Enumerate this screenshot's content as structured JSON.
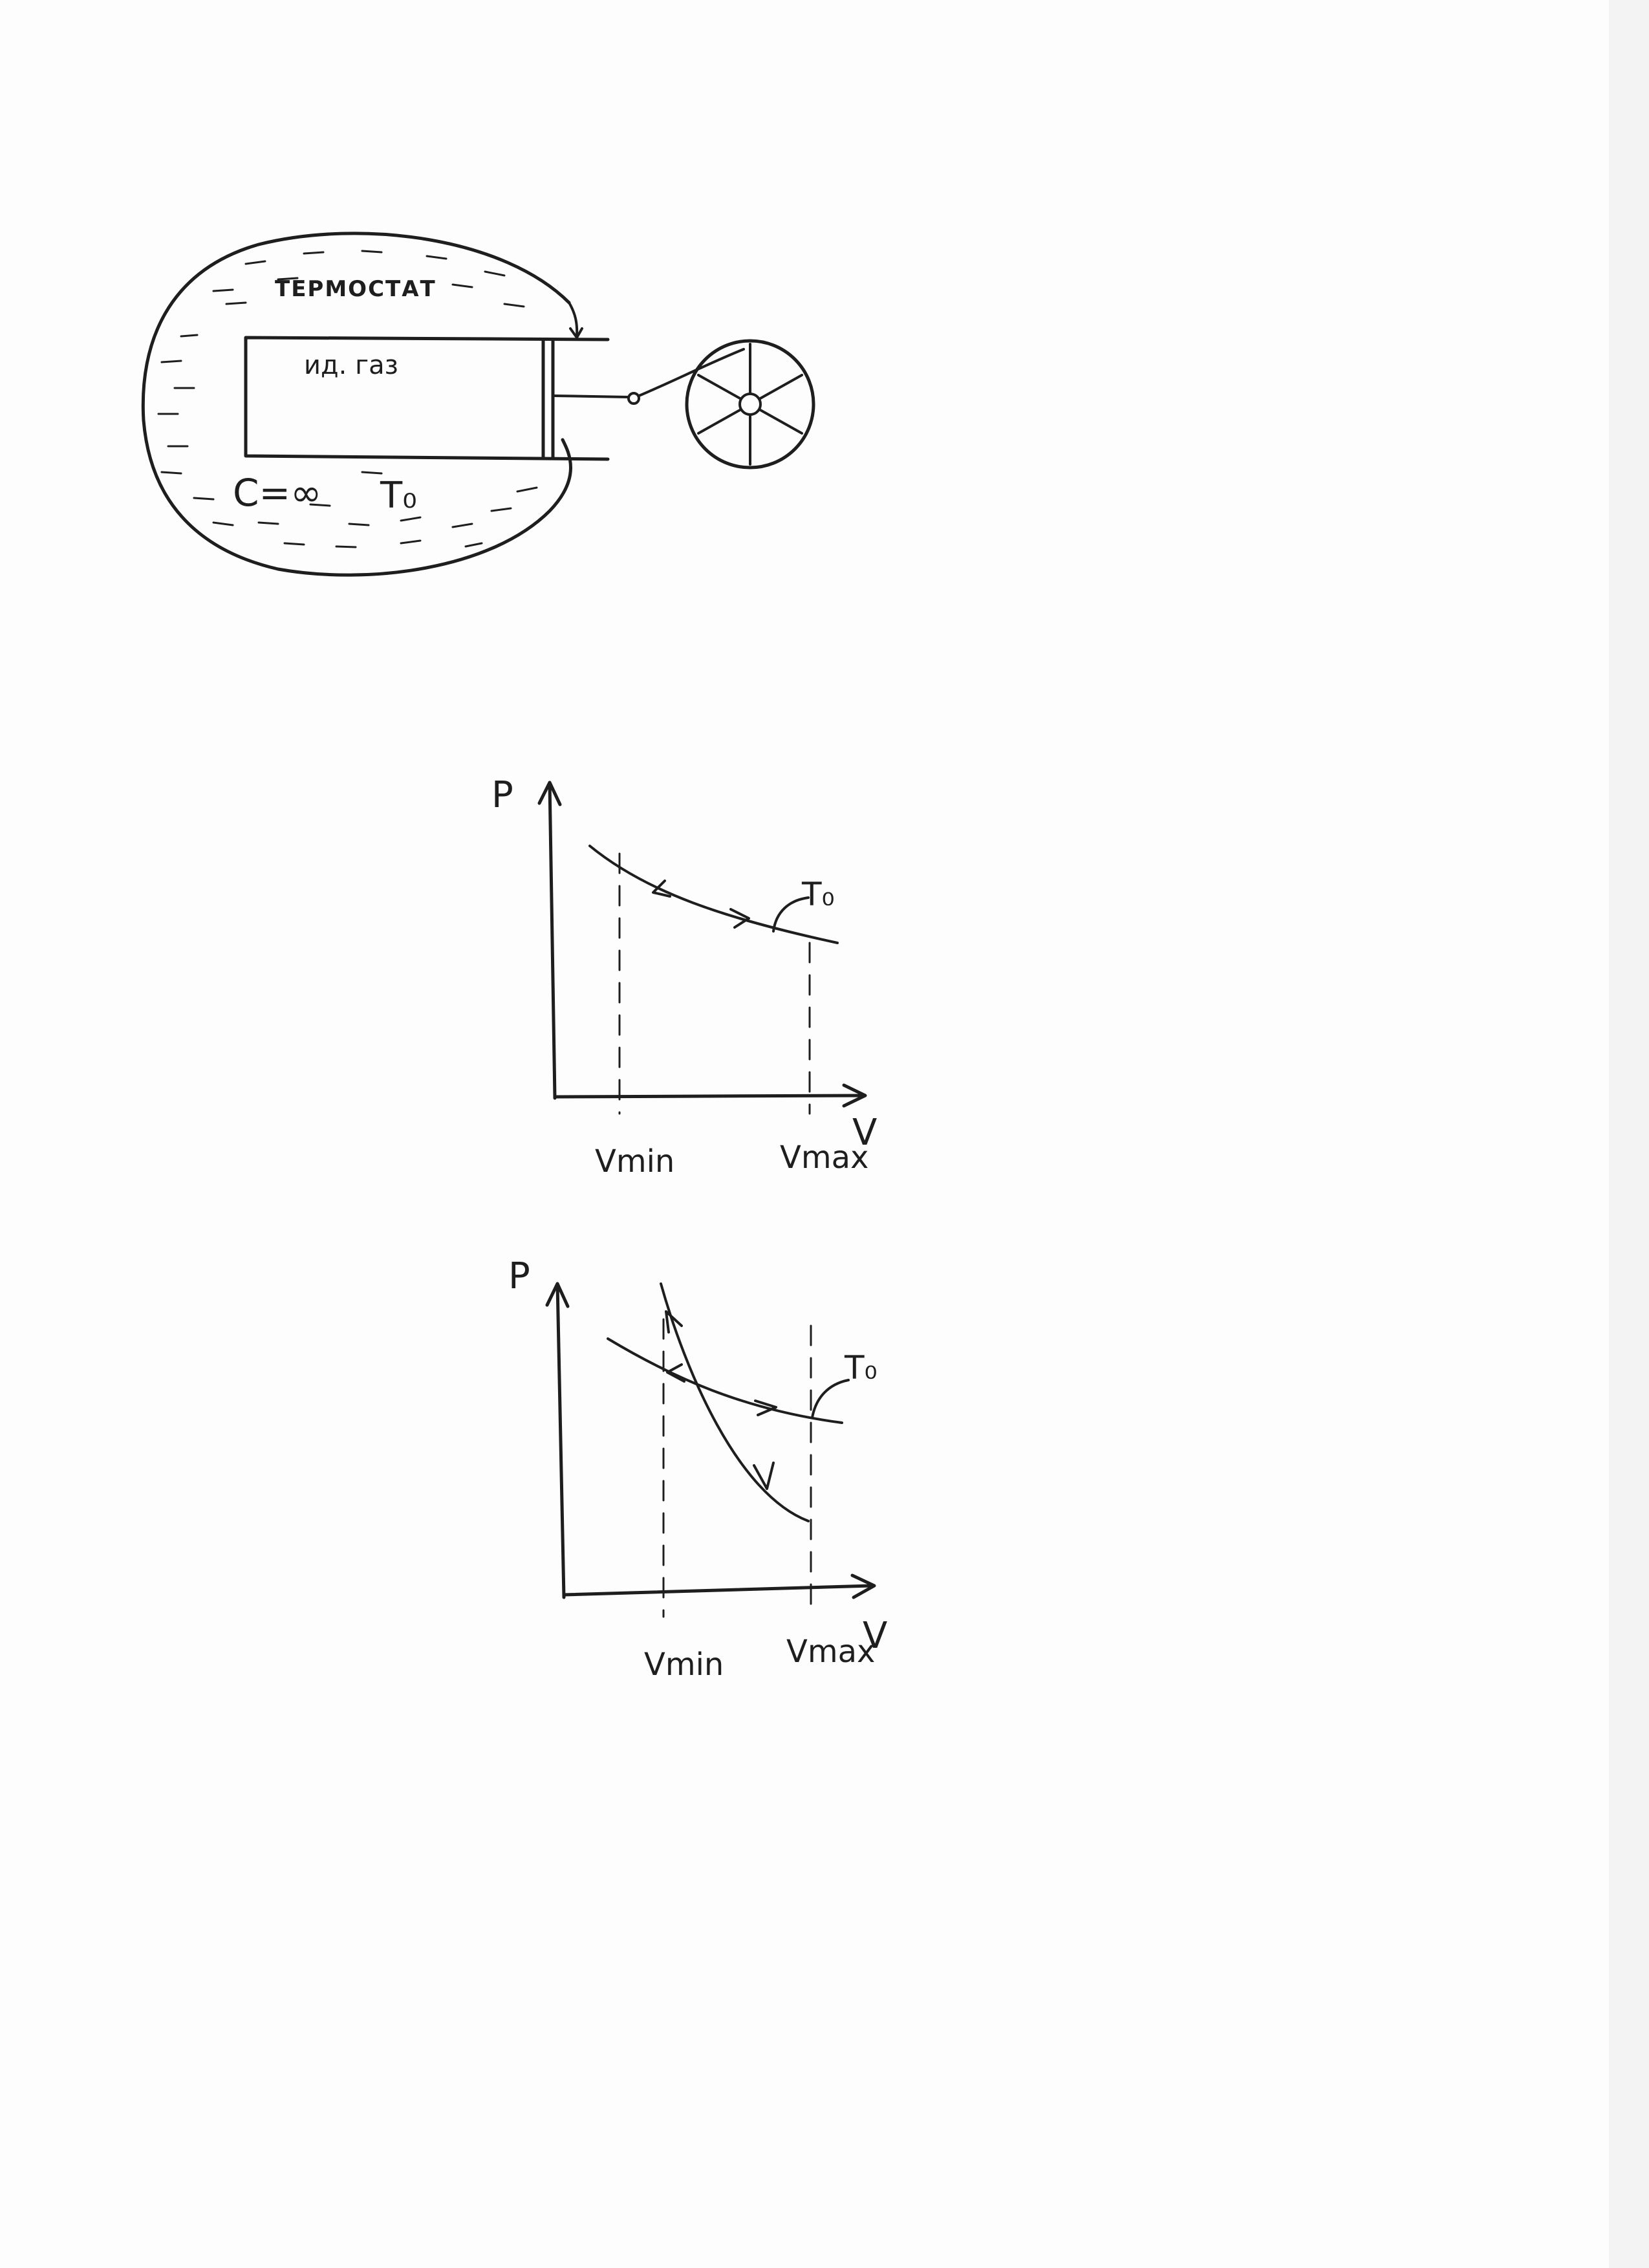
{
  "apparatus": {
    "thermostat_label": "ТЕРМОСТАТ",
    "gas_label": "ид. газ",
    "heat_capacity_label": "C=∞",
    "temperature_label": "T₀"
  },
  "diagram_top": {
    "p_axis_label": "P",
    "v_axis_label": "V",
    "vmin_label": "Vmin",
    "vmax_label": "Vmax",
    "isotherm_label": "T₀"
  },
  "diagram_bottom": {
    "p_axis_label": "P",
    "v_axis_label": "V",
    "vmin_label": "Vmin",
    "vmax_label": "Vmax",
    "isotherm_label": "T₀"
  },
  "colors": {
    "ink": "#1e1e1e",
    "paper": "#fdfdfd"
  }
}
